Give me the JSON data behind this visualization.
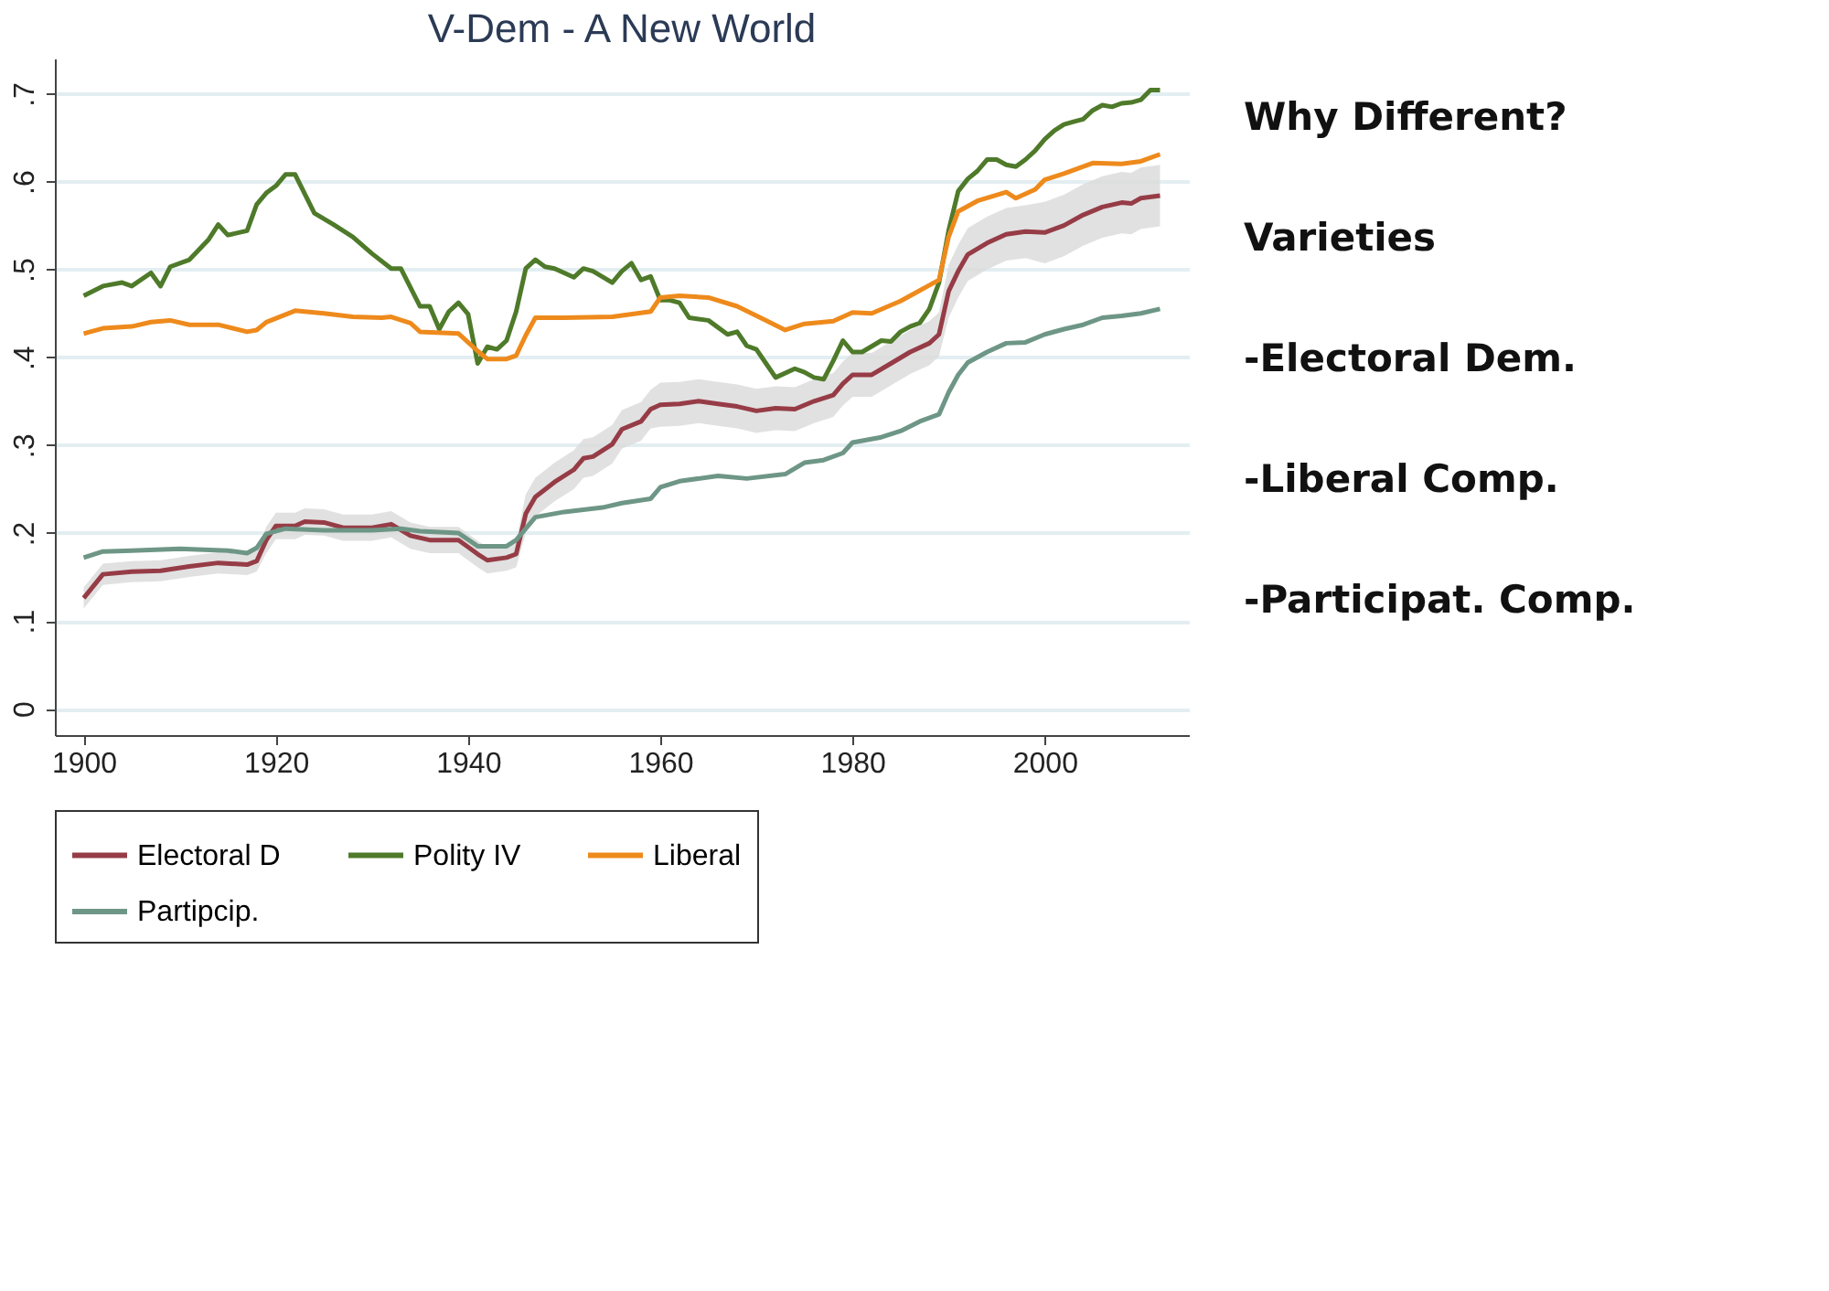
{
  "chart_data": {
    "type": "line",
    "title": "V-Dem - A New World",
    "xlim": [
      1897,
      2015
    ],
    "xticks": [
      1900,
      1920,
      1940,
      1960,
      1980,
      2000
    ],
    "ylim": [
      -0.03,
      0.74
    ],
    "yticks": [
      0,
      {
        "value": 0.1,
        "label": ".1"
      },
      {
        "value": 0.2,
        "label": ".2"
      },
      {
        "value": 0.3,
        "label": ".3"
      },
      {
        "value": 0.4,
        "label": ".4"
      },
      {
        "value": 0.5,
        "label": ".5"
      },
      {
        "value": 0.6,
        "label": ".6"
      },
      {
        "value": 0.7,
        "label": ".7"
      }
    ],
    "grid": "y",
    "legend": "bottom",
    "line_style": "solid",
    "marker": "none",
    "series": [
      {
        "name": "Electoral D",
        "color": "#963c46",
        "x": [
          1900,
          1902,
          1905,
          1908,
          1911,
          1914,
          1917,
          1918,
          1919,
          1920,
          1922,
          1923,
          1925,
          1927,
          1930,
          1932,
          1934,
          1936,
          1939,
          1941,
          1942,
          1944,
          1945,
          1946,
          1947,
          1949,
          1951,
          1952,
          1953,
          1955,
          1956,
          1958,
          1959,
          1960,
          1962,
          1964,
          1966,
          1968,
          1970,
          1972,
          1974,
          1976,
          1978,
          1979,
          1980,
          1982,
          1984,
          1986,
          1988,
          1989,
          1990,
          1991,
          1992,
          1994,
          1996,
          1998,
          2000,
          2002,
          2004,
          2006,
          2008,
          2009,
          2010,
          2012
        ],
        "values": [
          0.126,
          0.153,
          0.156,
          0.157,
          0.162,
          0.166,
          0.164,
          0.168,
          0.192,
          0.208,
          0.208,
          0.213,
          0.212,
          0.206,
          0.206,
          0.21,
          0.197,
          0.192,
          0.192,
          0.176,
          0.169,
          0.172,
          0.176,
          0.222,
          0.241,
          0.258,
          0.272,
          0.285,
          0.287,
          0.301,
          0.318,
          0.327,
          0.341,
          0.346,
          0.347,
          0.35,
          0.347,
          0.344,
          0.339,
          0.342,
          0.341,
          0.35,
          0.357,
          0.37,
          0.38,
          0.38,
          0.393,
          0.406,
          0.416,
          0.426,
          0.475,
          0.498,
          0.517,
          0.53,
          0.54,
          0.543,
          0.542,
          0.55,
          0.562,
          0.571,
          0.576,
          0.575,
          0.581,
          0.584
        ],
        "lower": [
          0.114,
          0.141,
          0.144,
          0.145,
          0.15,
          0.154,
          0.152,
          0.156,
          0.177,
          0.193,
          0.193,
          0.198,
          0.197,
          0.191,
          0.191,
          0.195,
          0.182,
          0.177,
          0.177,
          0.161,
          0.154,
          0.157,
          0.161,
          0.2,
          0.219,
          0.236,
          0.25,
          0.263,
          0.265,
          0.279,
          0.296,
          0.305,
          0.319,
          0.321,
          0.322,
          0.325,
          0.322,
          0.319,
          0.314,
          0.317,
          0.316,
          0.325,
          0.332,
          0.345,
          0.355,
          0.355,
          0.368,
          0.381,
          0.391,
          0.401,
          0.445,
          0.468,
          0.487,
          0.5,
          0.51,
          0.513,
          0.507,
          0.515,
          0.527,
          0.536,
          0.541,
          0.54,
          0.546,
          0.549
        ],
        "upper": [
          0.138,
          0.165,
          0.168,
          0.169,
          0.174,
          0.178,
          0.176,
          0.18,
          0.207,
          0.223,
          0.223,
          0.228,
          0.227,
          0.221,
          0.221,
          0.225,
          0.212,
          0.207,
          0.207,
          0.191,
          0.184,
          0.187,
          0.191,
          0.244,
          0.263,
          0.28,
          0.294,
          0.307,
          0.309,
          0.323,
          0.34,
          0.349,
          0.363,
          0.371,
          0.372,
          0.375,
          0.372,
          0.369,
          0.364,
          0.367,
          0.366,
          0.375,
          0.382,
          0.395,
          0.405,
          0.405,
          0.418,
          0.431,
          0.441,
          0.451,
          0.505,
          0.528,
          0.547,
          0.56,
          0.57,
          0.573,
          0.577,
          0.585,
          0.597,
          0.606,
          0.611,
          0.61,
          0.616,
          0.619
        ]
      },
      {
        "name": "Polity IV",
        "color": "#4e7a2a",
        "x": [
          1900,
          1902,
          1904,
          1905,
          1907,
          1908,
          1909,
          1911,
          1913,
          1914,
          1915,
          1917,
          1918,
          1919,
          1920,
          1921,
          1922,
          1924,
          1926,
          1928,
          1930,
          1932,
          1933,
          1935,
          1936,
          1937,
          1938,
          1939,
          1940,
          1941,
          1942,
          1943,
          1944,
          1945,
          1946,
          1947,
          1948,
          1949,
          1950,
          1951,
          1952,
          1953,
          1955,
          1956,
          1957,
          1958,
          1959,
          1960,
          1961,
          1962,
          1963,
          1965,
          1967,
          1968,
          1969,
          1970,
          1971,
          1972,
          1974,
          1975,
          1976,
          1977,
          1978,
          1979,
          1980,
          1981,
          1983,
          1984,
          1985,
          1986,
          1987,
          1988,
          1989,
          1990,
          1991,
          1992,
          1993,
          1994,
          1995,
          1996,
          1997,
          1998,
          1999,
          2000,
          2001,
          2002,
          2003,
          2004,
          2005,
          2006,
          2007,
          2008,
          2009,
          2010,
          2011,
          2012
        ],
        "values": [
          0.47,
          0.481,
          0.485,
          0.481,
          0.496,
          0.481,
          0.503,
          0.511,
          0.534,
          0.551,
          0.539,
          0.544,
          0.574,
          0.587,
          0.595,
          0.608,
          0.608,
          0.564,
          0.551,
          0.537,
          0.518,
          0.501,
          0.501,
          0.458,
          0.458,
          0.432,
          0.452,
          0.462,
          0.449,
          0.393,
          0.412,
          0.409,
          0.419,
          0.452,
          0.501,
          0.511,
          0.503,
          0.501,
          0.496,
          0.491,
          0.501,
          0.498,
          0.485,
          0.498,
          0.507,
          0.488,
          0.492,
          0.465,
          0.465,
          0.462,
          0.445,
          0.442,
          0.426,
          0.429,
          0.413,
          0.409,
          0.393,
          0.377,
          0.387,
          0.383,
          0.377,
          0.375,
          0.396,
          0.419,
          0.406,
          0.406,
          0.419,
          0.418,
          0.429,
          0.435,
          0.439,
          0.455,
          0.485,
          0.544,
          0.589,
          0.603,
          0.612,
          0.625,
          0.625,
          0.619,
          0.617,
          0.625,
          0.635,
          0.648,
          0.658,
          0.665,
          0.668,
          0.671,
          0.681,
          0.687,
          0.685,
          0.689,
          0.69,
          0.693,
          0.704,
          0.704
        ]
      },
      {
        "name": "Liberal",
        "color": "#ee8a1c",
        "x": [
          1900,
          1902,
          1905,
          1907,
          1909,
          1911,
          1914,
          1917,
          1918,
          1919,
          1922,
          1925,
          1928,
          1931,
          1932,
          1934,
          1935,
          1939,
          1941,
          1942,
          1944,
          1945,
          1946,
          1947,
          1950,
          1955,
          1959,
          1960,
          1962,
          1965,
          1968,
          1971,
          1973,
          1975,
          1978,
          1980,
          1982,
          1985,
          1987,
          1989,
          1990,
          1991,
          1993,
          1996,
          1997,
          1999,
          2000,
          2002,
          2005,
          2008,
          2010,
          2012
        ],
        "values": [
          0.427,
          0.433,
          0.435,
          0.44,
          0.442,
          0.437,
          0.437,
          0.429,
          0.431,
          0.44,
          0.453,
          0.45,
          0.446,
          0.445,
          0.446,
          0.439,
          0.429,
          0.427,
          0.407,
          0.398,
          0.398,
          0.402,
          0.425,
          0.445,
          0.445,
          0.446,
          0.452,
          0.468,
          0.47,
          0.468,
          0.458,
          0.442,
          0.431,
          0.438,
          0.441,
          0.451,
          0.45,
          0.464,
          0.476,
          0.488,
          0.537,
          0.566,
          0.578,
          0.588,
          0.581,
          0.591,
          0.602,
          0.609,
          0.621,
          0.62,
          0.623,
          0.631
        ]
      },
      {
        "name": "Partipcip.",
        "color": "#6e9686",
        "x": [
          1900,
          1902,
          1905,
          1910,
          1915,
          1917,
          1918,
          1919,
          1921,
          1925,
          1930,
          1933,
          1935,
          1939,
          1941,
          1944,
          1945,
          1947,
          1950,
          1954,
          1956,
          1959,
          1960,
          1962,
          1966,
          1969,
          1973,
          1975,
          1977,
          1979,
          1980,
          1983,
          1985,
          1987,
          1989,
          1990,
          1991,
          1992,
          1994,
          1996,
          1998,
          2000,
          2002,
          2004,
          2006,
          2008,
          2010,
          2012
        ],
        "values": [
          0.172,
          0.179,
          0.18,
          0.182,
          0.18,
          0.177,
          0.183,
          0.199,
          0.205,
          0.203,
          0.203,
          0.205,
          0.202,
          0.2,
          0.185,
          0.185,
          0.192,
          0.218,
          0.224,
          0.229,
          0.234,
          0.239,
          0.252,
          0.259,
          0.265,
          0.262,
          0.267,
          0.28,
          0.283,
          0.291,
          0.303,
          0.309,
          0.316,
          0.327,
          0.335,
          0.36,
          0.38,
          0.394,
          0.406,
          0.416,
          0.417,
          0.426,
          0.432,
          0.437,
          0.445,
          0.447,
          0.45,
          0.455
        ]
      }
    ],
    "annotations": [
      "Why Different?",
      "Varieties",
      "-Electoral Dem.",
      "-Liberal Comp.",
      "-Participat. Comp."
    ]
  }
}
